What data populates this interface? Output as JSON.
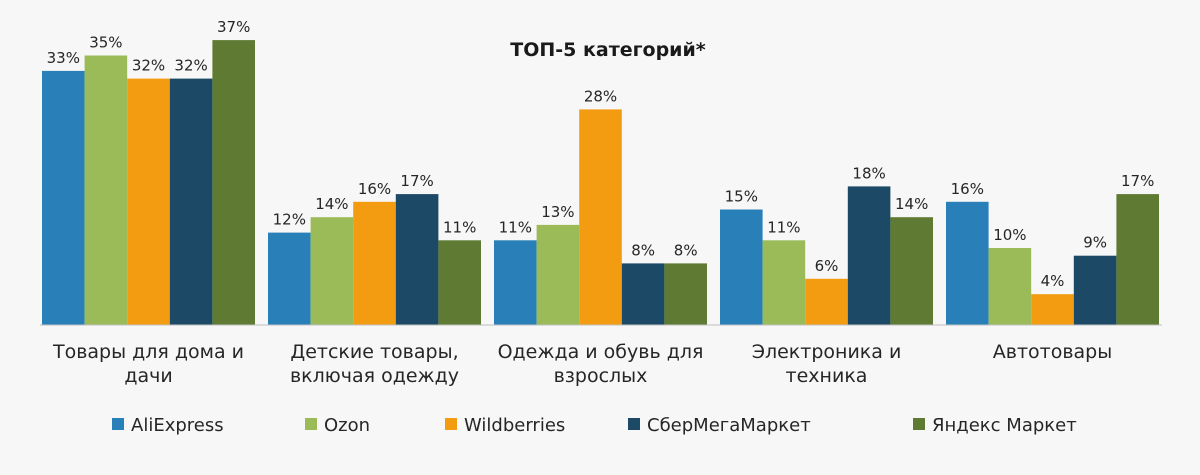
{
  "chart_data": {
    "type": "bar",
    "title": "ТОП-5 категорий*",
    "xlabel": "",
    "ylabel": "",
    "ylim": [
      0,
      40
    ],
    "grid": false,
    "legend_position": "bottom",
    "value_format": "{v}%",
    "categories": [
      [
        "Товары для дома и",
        "дачи"
      ],
      [
        "Детские товары,",
        "включая одежду"
      ],
      [
        "Одежда и обувь для",
        "взрослых"
      ],
      [
        "Электроника и",
        "техника"
      ],
      [
        "Автотовары"
      ]
    ],
    "series": [
      {
        "name": "AliExpress",
        "color": "#2980b9",
        "values": [
          33,
          12,
          11,
          15,
          16
        ]
      },
      {
        "name": "Ozon",
        "color": "#9bbb59",
        "values": [
          35,
          14,
          13,
          11,
          10
        ]
      },
      {
        "name": "Wildberries",
        "color": "#f39c12",
        "values": [
          32,
          16,
          28,
          6,
          4
        ]
      },
      {
        "name": "СберМегаМаркет",
        "color": "#1c4966",
        "values": [
          32,
          17,
          8,
          18,
          9
        ]
      },
      {
        "name": "Яндекс Маркет",
        "color": "#5e7a33",
        "values": [
          37,
          11,
          8,
          14,
          17
        ]
      }
    ]
  }
}
